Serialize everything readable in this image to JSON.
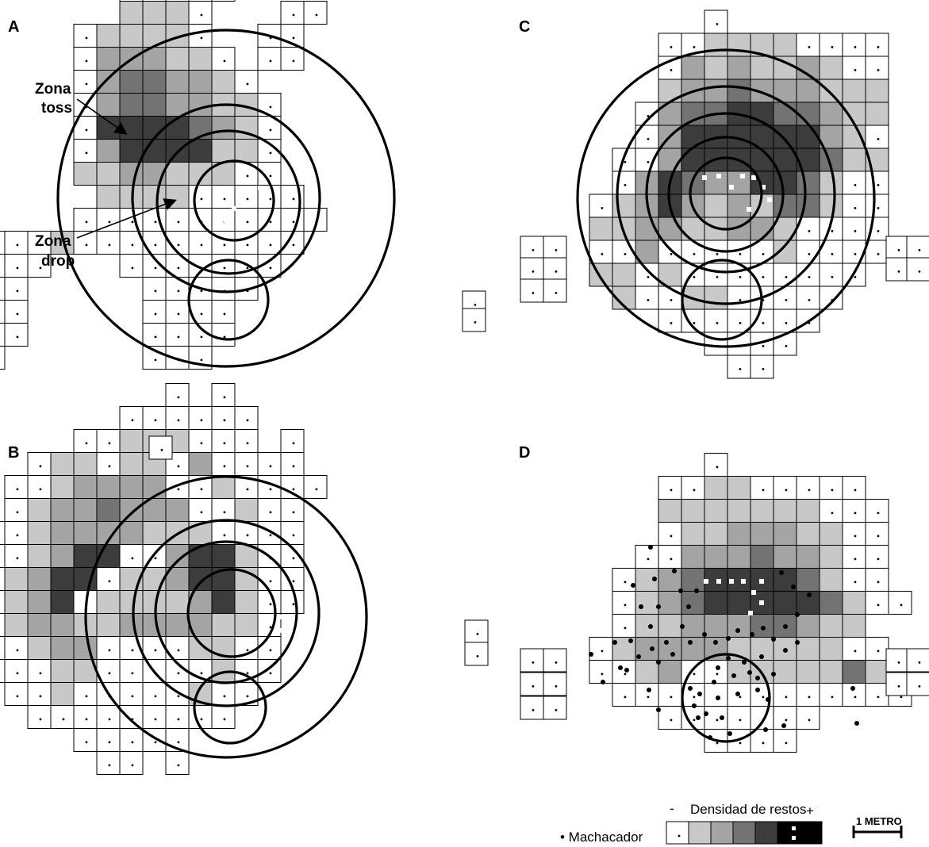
{
  "panels": [
    {
      "id": "A",
      "origin": [
        180,
        190
      ],
      "rows": [
        "...........WW.....",
        "...........WW.....",
        "........WWWWW.....",
        "........LLLW...WW.",
        "......WLLLLW..WW..",
        "......WMMMLLW.WW..",
        "......WMDDMMLW....",
        "......WMDDMMLLW...",
        "......WKKKKDMLW...",
        "......WMKKKKLLW...",
        "......LLMMLLLWW...",
        ".......LLLLWWWWW..",
        "......WWWWWWWWWWW.",
        ".WWWWLWWWWWWWWWW..",
        "WWWWW...WWWWWWW...",
        "WWWW.....WWWWW....",
        "WWWW.....WWWW.....",
        "WWWW.....WWWW.....",
        "..W......WWW......"
      ],
      "whites": [
        [
          304,
          239
        ],
        [
          318,
          251
        ],
        [
          328,
          237
        ],
        [
          290,
          249
        ],
        [
          295,
          263
        ],
        [
          320,
          266
        ],
        [
          308,
          276
        ],
        [
          285,
          278
        ],
        [
          330,
          276
        ]
      ],
      "circles": [
        [
          285,
          250,
          212
        ],
        [
          285,
          250,
          118
        ],
        [
          288,
          255,
          90
        ],
        [
          295,
          253,
          50
        ]
      ],
      "small_circle": [
        288,
        378,
        50
      ],
      "extra_cells": [
        [
          583,
          367
        ],
        [
          583,
          389
        ]
      ]
    },
    {
      "id": "B",
      "origin": [
        180,
        730
      ],
      "rows": [
        "..........W.W.....",
        "........WWWWWW....",
        "......WWLLLWWW.W..",
        "....WLLWLLWMWWWW..",
        "...WWLMMMMWWLWWWW.",
        "...WLMMDMMMWWLWW..",
        "..WWLMMMMLLLWWWW..",
        "..WWLMKKWWMKKLWW..",
        ".WWLMKKWLLMKKLWW..",
        ".WWLMKWLLLLMKLWW..",
        "WWWLMMLLMMMMLLW...",
        "WWWWLMMWWWWLLWW...",
        "..WWWLLWWWWWLWW...",
        "...WWLWWWWWLWW....",
        "....WWWWWWWWW.....",
        "......WWWWW.......",
        ".......WW.W......."
      ],
      "whites": [
        [
          352,
          778
        ],
        [
          352,
          795
        ],
        [
          366,
          790
        ],
        [
          380,
          793
        ],
        [
          372,
          808
        ]
      ],
      "circles": [
        [
          285,
          778,
          177
        ],
        [
          285,
          773,
          117
        ],
        [
          285,
          772,
          89
        ],
        [
          292,
          773,
          55
        ]
      ],
      "small_circle": [
        290,
        892,
        45
      ],
      "extra_cells": [
        [
          188,
          550
        ],
        [
          586,
          782
        ],
        [
          586,
          810
        ]
      ]
    },
    {
      "id": "C",
      "origin": [
        888,
        245
      ],
      "rows": [
        "..........W.........",
        "........WWLLLLWWWW..",
        "........WMLMLLMLWW..",
        "........LMMDMMMLLL..",
        ".......WMDDKKDDMLL..",
        ".......WMKKKKKKMLW..",
        "......WWMKKKKKKDLL..",
        "......WMKDMMKKDLWW..",
        ".....WLMKMLMLDDLWW..",
        ".....LLMMLLMMLWWWW..",
        ".....WWMWWWWWLWWWW..",
        ".....LLWLWWWWWWWW...",
        "......LWWLLWWWWW....",
        "........WWWWWWW.....",
        "..........WWWW......",
        "...........WW......."
      ],
      "whites": [
        [
          888,
          224
        ],
        [
          906,
          222
        ],
        [
          922,
          236
        ],
        [
          936,
          222
        ],
        [
          950,
          224
        ],
        [
          962,
          236
        ],
        [
          970,
          252
        ],
        [
          944,
          264
        ]
      ],
      "circles": [
        [
          915,
          250,
          187
        ],
        [
          915,
          246,
          137
        ],
        [
          915,
          243,
          100
        ],
        [
          915,
          245,
          72
        ],
        [
          915,
          244,
          45
        ]
      ],
      "small_circle": [
        910,
        378,
        50
      ],
      "extra_cells": [
        [
          656,
          298
        ],
        [
          685,
          298
        ],
        [
          656,
          325
        ],
        [
          685,
          325
        ],
        [
          656,
          352
        ],
        [
          685,
          352
        ],
        [
          1117,
          298
        ],
        [
          1143,
          298
        ],
        [
          1117,
          325
        ],
        [
          1143,
          325
        ]
      ]
    },
    {
      "id": "D",
      "origin": [
        888,
        760
      ],
      "rows": [
        "..........W.........",
        "........WWLLWWWWW...",
        "........LLLLLLLWWW..",
        "........WLLMMMLLWW..",
        ".......WWMMMDMMLWW..",
        "......WLMDKKKKDLWW..",
        "......WLMDKKKKKDLWW.",
        "......WLLMMMDDMLL...",
        ".....WLMMMMLLLLLWW..",
        ".....WWLMWWLLLLLDLW.",
        "......WWWWWWWWWWWWW.",
        "........WWWWWWW.....",
        "..........WWWW......"
      ],
      "whites": [
        [
          890,
          733
        ],
        [
          906,
          733
        ],
        [
          922,
          733
        ],
        [
          937,
          733
        ],
        [
          950,
          747
        ],
        [
          960,
          733
        ],
        [
          960,
          760
        ],
        [
          946,
          773
        ]
      ],
      "circles": [],
      "small_circle": [
        915,
        880,
        55
      ],
      "extra_cells": [
        [
          656,
          818
        ],
        [
          685,
          818
        ],
        [
          656,
          848
        ],
        [
          685,
          848
        ],
        [
          656,
          878
        ],
        [
          685,
          878
        ],
        [
          1117,
          818
        ],
        [
          1143,
          818
        ],
        [
          1117,
          848
        ],
        [
          1143,
          848
        ]
      ]
    }
  ],
  "hammerstones": [
    [
      820,
      690
    ],
    [
      798,
      738
    ],
    [
      825,
      730
    ],
    [
      808,
      765
    ],
    [
      830,
      765
    ],
    [
      820,
      790
    ],
    [
      850,
      720
    ],
    [
      858,
      745
    ],
    [
      878,
      745
    ],
    [
      868,
      765
    ],
    [
      860,
      790
    ],
    [
      840,
      810
    ],
    [
      822,
      818
    ],
    [
      805,
      828
    ],
    [
      795,
      808
    ],
    [
      782,
      842
    ],
    [
      745,
      825
    ],
    [
      760,
      860
    ],
    [
      775,
      810
    ],
    [
      790,
      845
    ],
    [
      830,
      835
    ],
    [
      848,
      825
    ],
    [
      870,
      810
    ],
    [
      888,
      800
    ],
    [
      902,
      810
    ],
    [
      918,
      805
    ],
    [
      930,
      795
    ],
    [
      948,
      800
    ],
    [
      962,
      792
    ],
    [
      975,
      806
    ],
    [
      990,
      790
    ],
    [
      1005,
      775
    ],
    [
      1000,
      740
    ],
    [
      985,
      722
    ],
    [
      1020,
      750
    ],
    [
      1005,
      810
    ],
    [
      990,
      820
    ],
    [
      960,
      828
    ],
    [
      938,
      835
    ],
    [
      918,
      830
    ],
    [
      905,
      842
    ],
    [
      925,
      852
    ],
    [
      945,
      848
    ],
    [
      955,
      870
    ],
    [
      968,
      882
    ],
    [
      900,
      860
    ],
    [
      882,
      875
    ],
    [
      870,
      868
    ],
    [
      875,
      890
    ],
    [
      890,
      900
    ],
    [
      905,
      880
    ],
    [
      930,
      875
    ],
    [
      955,
      855
    ],
    [
      975,
      850
    ],
    [
      965,
      920
    ],
    [
      988,
      915
    ],
    [
      910,
      905
    ],
    [
      920,
      925
    ],
    [
      880,
      905
    ],
    [
      895,
      930
    ],
    [
      1075,
      868
    ],
    [
      1080,
      912
    ],
    [
      830,
      895
    ],
    [
      818,
      870
    ]
  ],
  "labels": {
    "panel_a": "A",
    "panel_b": "B",
    "panel_c": "C",
    "panel_d": "D",
    "zona_toss_1": "Zona",
    "zona_toss_2": "toss",
    "zona_drop_1": "Zona",
    "zona_drop_2": "drop"
  },
  "legend": {
    "density_title": "Densidad de restos",
    "minus": "-",
    "plus": "+",
    "hammerstone": "• Machacador",
    "scale": "1 METRO"
  },
  "colors": {
    "W": "#ffffff",
    "L": "#c8c8c8",
    "M": "#a4a4a4",
    "D": "#737373",
    "K": "#3c3c3c",
    "B": "#000000"
  }
}
